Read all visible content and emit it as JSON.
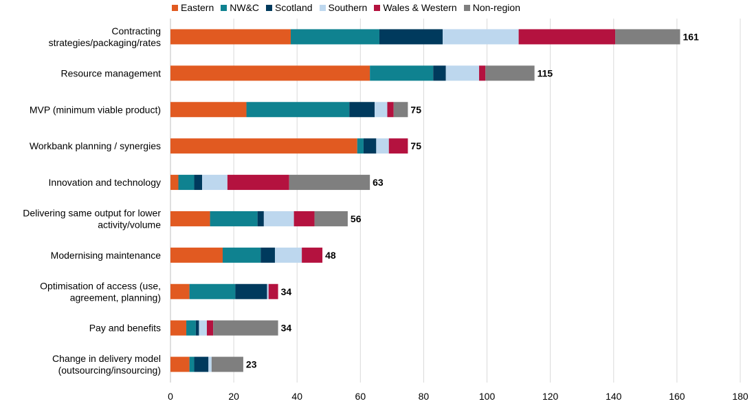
{
  "chart_data": {
    "type": "bar",
    "orientation": "horizontal",
    "stacked": true,
    "title": "",
    "xlabel": "",
    "ylabel": "",
    "xlim": [
      0,
      180
    ],
    "xticks": [
      0,
      20,
      40,
      60,
      80,
      100,
      120,
      140,
      160,
      180
    ],
    "grid": "vertical",
    "legend_position": "top",
    "categories": [
      [
        "Contracting",
        "strategies/packaging/rates"
      ],
      [
        "Resource management"
      ],
      [
        "MVP (minimum viable product)"
      ],
      [
        "Workbank planning / synergies"
      ],
      [
        "Innovation and technology"
      ],
      [
        "Delivering same output for lower",
        "activity/volume"
      ],
      [
        "Modernising maintenance"
      ],
      [
        "Optimisation of access (use,",
        "agreement, planning)"
      ],
      [
        "Pay and benefits"
      ],
      [
        "Change in delivery model",
        "(outsourcing/insourcing)"
      ]
    ],
    "series": [
      {
        "name": "Eastern",
        "color": "#E15A21",
        "values": [
          38,
          63,
          24,
          59,
          2.5,
          12.5,
          16.5,
          6,
          5,
          6
        ]
      },
      {
        "name": "NW&C",
        "color": "#0F8290",
        "values": [
          28,
          20,
          32.5,
          2,
          5,
          15,
          12,
          14.5,
          3,
          1.5
        ]
      },
      {
        "name": "Scotland",
        "color": "#003A5D",
        "values": [
          20,
          4,
          8,
          4,
          2.5,
          2,
          4.5,
          10,
          1,
          4.5
        ]
      },
      {
        "name": "Southern",
        "color": "#BDD7EE",
        "values": [
          24,
          10.5,
          4,
          4,
          8,
          9.5,
          8.5,
          0.5,
          2.5,
          1
        ]
      },
      {
        "name": "Wales & Western",
        "color": "#B4123F",
        "values": [
          30.5,
          2,
          2,
          6,
          19.5,
          6.5,
          6.5,
          3,
          2,
          0
        ]
      },
      {
        "name": "Non-region",
        "color": "#7F7F7F",
        "values": [
          20.5,
          15.5,
          4.5,
          0,
          25.5,
          10.5,
          0,
          0,
          20.5,
          10
        ]
      }
    ],
    "totals": [
      161,
      115,
      75,
      75,
      63,
      56,
      48,
      34,
      34,
      23
    ]
  }
}
